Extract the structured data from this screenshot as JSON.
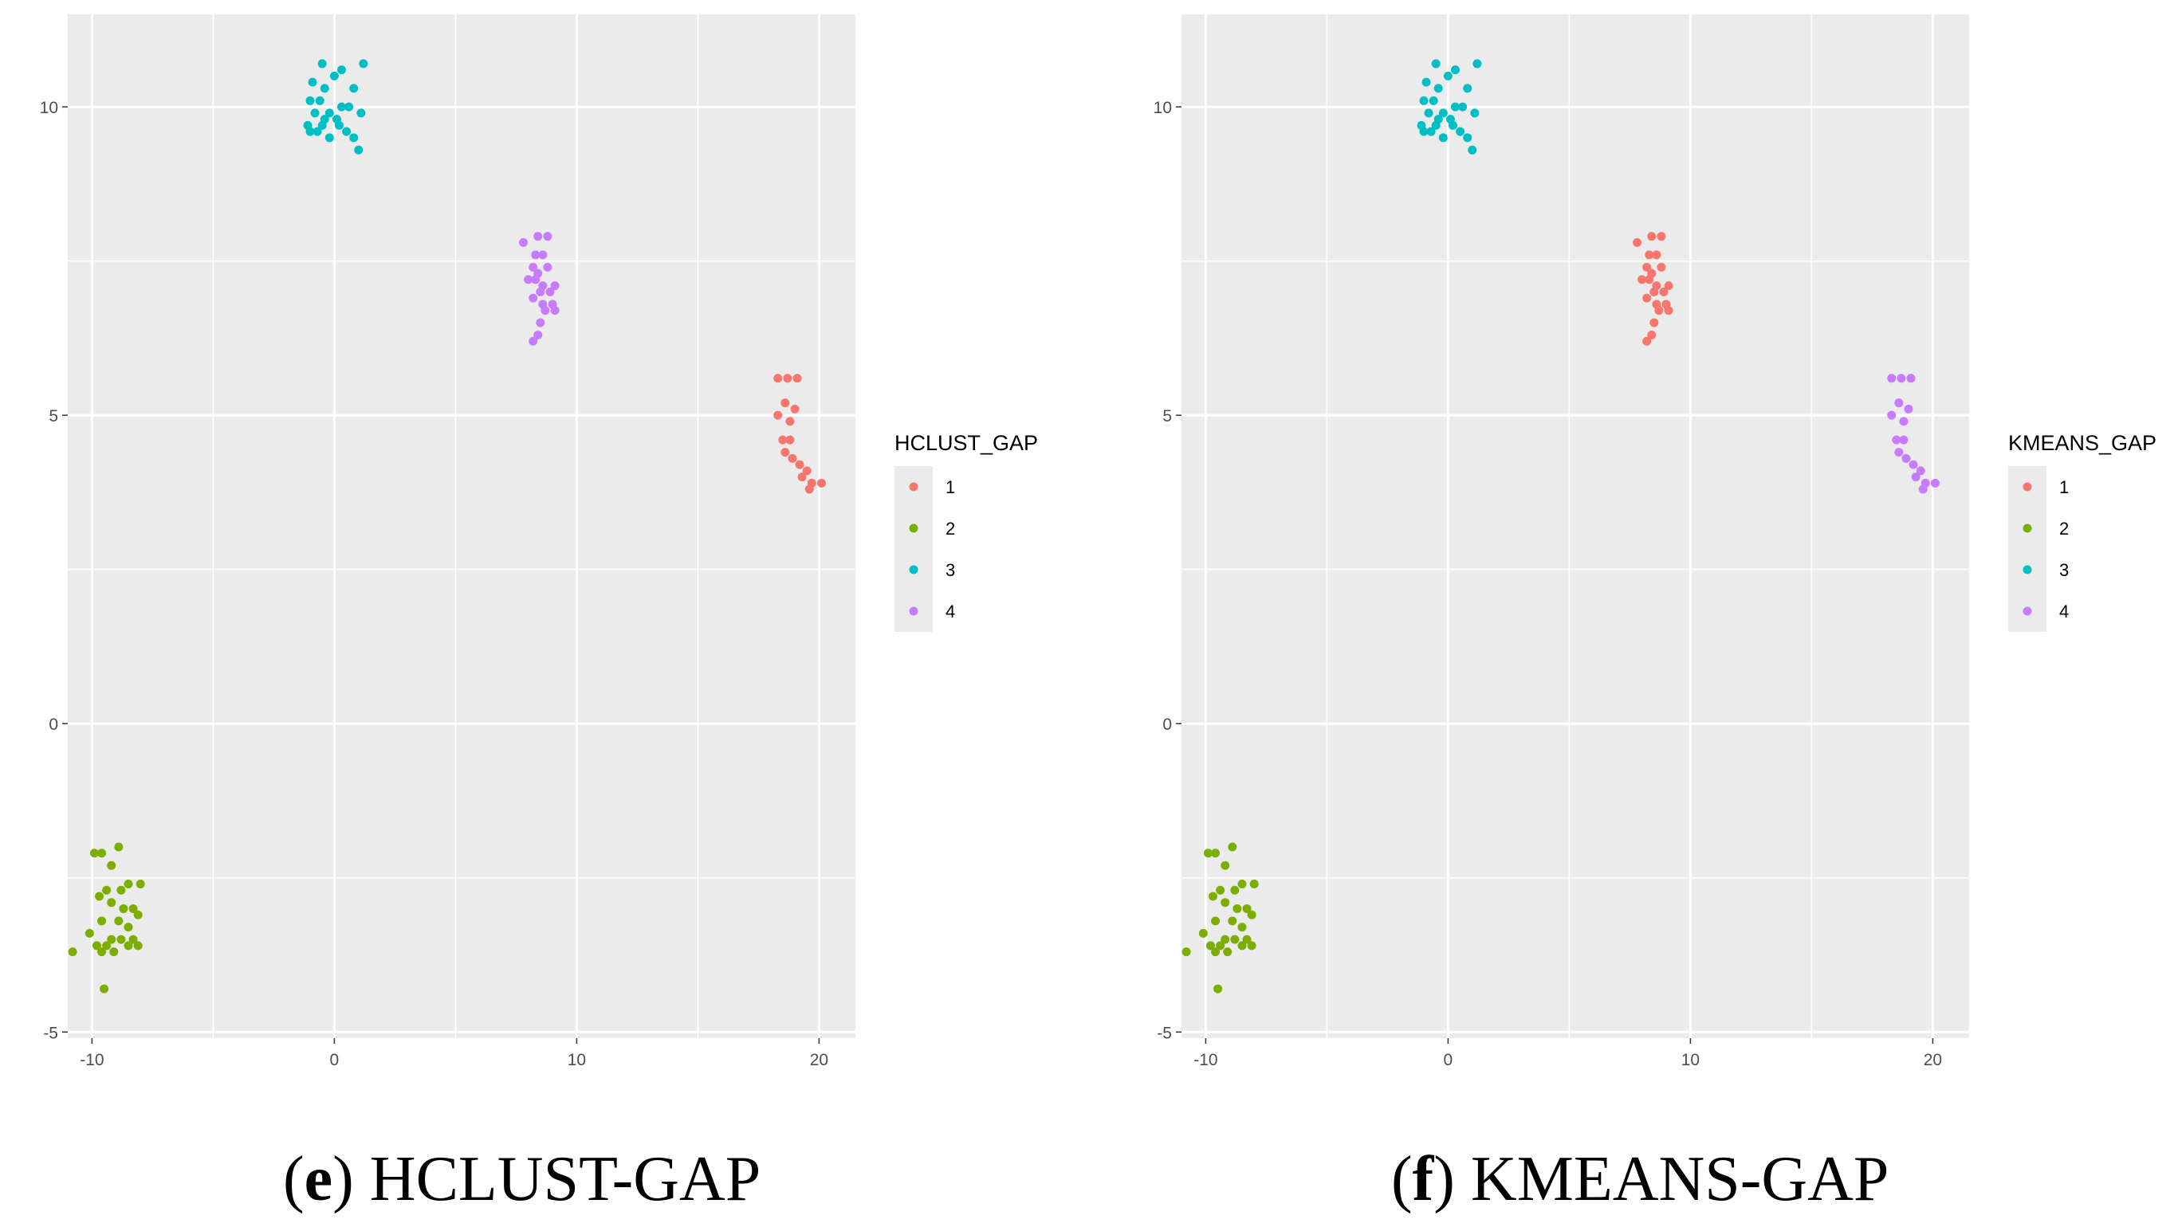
{
  "chart_data": [
    {
      "type": "scatter",
      "caption_letter": "e",
      "caption_text": "HCLUST-GAP",
      "legend_title": "HCLUST_GAP",
      "xlim": [
        -11,
        21.5
      ],
      "ylim": [
        -5.1,
        11.5
      ],
      "x_ticks": [
        -10,
        0,
        10,
        20
      ],
      "x_tick_labels": [
        "-10",
        "0",
        "10",
        "20"
      ],
      "y_ticks": [
        -5,
        0,
        5,
        10
      ],
      "y_tick_labels": [
        "-5",
        "0",
        "5",
        "10"
      ],
      "series": [
        {
          "name": "1",
          "points": [
            [
              18.3,
              5.6
            ],
            [
              18.7,
              5.6
            ],
            [
              19.1,
              5.6
            ],
            [
              18.6,
              5.2
            ],
            [
              18.3,
              5.0
            ],
            [
              19.0,
              5.1
            ],
            [
              18.8,
              4.9
            ],
            [
              18.5,
              4.6
            ],
            [
              18.8,
              4.6
            ],
            [
              18.6,
              4.4
            ],
            [
              18.9,
              4.3
            ],
            [
              19.2,
              4.2
            ],
            [
              19.5,
              4.1
            ],
            [
              19.3,
              4.0
            ],
            [
              19.7,
              3.9
            ],
            [
              20.1,
              3.9
            ],
            [
              19.6,
              3.8
            ]
          ]
        },
        {
          "name": "2",
          "points": [
            [
              -10.8,
              -3.7
            ],
            [
              -9.9,
              -2.1
            ],
            [
              -9.6,
              -2.1
            ],
            [
              -8.9,
              -2.0
            ],
            [
              -9.2,
              -2.3
            ],
            [
              -9.7,
              -2.8
            ],
            [
              -9.4,
              -2.7
            ],
            [
              -8.8,
              -2.7
            ],
            [
              -8.5,
              -2.6
            ],
            [
              -8.0,
              -2.6
            ],
            [
              -9.2,
              -2.9
            ],
            [
              -8.7,
              -3.0
            ],
            [
              -8.3,
              -3.0
            ],
            [
              -8.1,
              -3.1
            ],
            [
              -9.6,
              -3.2
            ],
            [
              -8.9,
              -3.2
            ],
            [
              -8.5,
              -3.3
            ],
            [
              -10.1,
              -3.4
            ],
            [
              -9.2,
              -3.5
            ],
            [
              -8.8,
              -3.5
            ],
            [
              -8.3,
              -3.5
            ],
            [
              -9.8,
              -3.6
            ],
            [
              -9.4,
              -3.6
            ],
            [
              -8.5,
              -3.6
            ],
            [
              -8.1,
              -3.6
            ],
            [
              -9.6,
              -3.7
            ],
            [
              -9.1,
              -3.7
            ],
            [
              -9.5,
              -4.3
            ]
          ]
        },
        {
          "name": "3",
          "points": [
            [
              -0.5,
              10.7
            ],
            [
              0.3,
              10.6
            ],
            [
              1.2,
              10.7
            ],
            [
              -0.9,
              10.4
            ],
            [
              0.0,
              10.5
            ],
            [
              -0.4,
              10.3
            ],
            [
              0.8,
              10.3
            ],
            [
              -1.0,
              10.1
            ],
            [
              -0.6,
              10.1
            ],
            [
              0.3,
              10.0
            ],
            [
              0.6,
              10.0
            ],
            [
              -0.2,
              9.9
            ],
            [
              -0.8,
              9.9
            ],
            [
              -0.4,
              9.8
            ],
            [
              0.1,
              9.8
            ],
            [
              1.1,
              9.9
            ],
            [
              -1.1,
              9.7
            ],
            [
              -0.5,
              9.7
            ],
            [
              0.2,
              9.7
            ],
            [
              -0.7,
              9.6
            ],
            [
              -1.0,
              9.6
            ],
            [
              0.5,
              9.6
            ],
            [
              -0.2,
              9.5
            ],
            [
              0.8,
              9.5
            ],
            [
              1.0,
              9.3
            ]
          ]
        },
        {
          "name": "4",
          "points": [
            [
              7.8,
              7.8
            ],
            [
              8.4,
              7.9
            ],
            [
              8.8,
              7.9
            ],
            [
              8.3,
              7.6
            ],
            [
              8.6,
              7.6
            ],
            [
              8.2,
              7.4
            ],
            [
              8.8,
              7.4
            ],
            [
              8.4,
              7.3
            ],
            [
              8.0,
              7.2
            ],
            [
              8.3,
              7.2
            ],
            [
              8.6,
              7.1
            ],
            [
              9.1,
              7.1
            ],
            [
              8.5,
              7.0
            ],
            [
              8.9,
              7.0
            ],
            [
              8.2,
              6.9
            ],
            [
              8.6,
              6.8
            ],
            [
              9.0,
              6.8
            ],
            [
              8.7,
              6.7
            ],
            [
              9.1,
              6.7
            ],
            [
              8.5,
              6.5
            ],
            [
              8.4,
              6.3
            ],
            [
              8.2,
              6.2
            ]
          ]
        }
      ]
    },
    {
      "type": "scatter",
      "caption_letter": "f",
      "caption_text": "KMEANS-GAP",
      "legend_title": "KMEANS_GAP",
      "xlim": [
        -11,
        21.5
      ],
      "ylim": [
        -5.1,
        11.5
      ],
      "x_ticks": [
        -10,
        0,
        10,
        20
      ],
      "x_tick_labels": [
        "-10",
        "0",
        "10",
        "20"
      ],
      "y_ticks": [
        -5,
        0,
        5,
        10
      ],
      "y_tick_labels": [
        "-5",
        "0",
        "5",
        "10"
      ],
      "series": [
        {
          "name": "1",
          "points": [
            [
              7.8,
              7.8
            ],
            [
              8.4,
              7.9
            ],
            [
              8.8,
              7.9
            ],
            [
              8.3,
              7.6
            ],
            [
              8.6,
              7.6
            ],
            [
              8.2,
              7.4
            ],
            [
              8.8,
              7.4
            ],
            [
              8.4,
              7.3
            ],
            [
              8.0,
              7.2
            ],
            [
              8.3,
              7.2
            ],
            [
              8.6,
              7.1
            ],
            [
              9.1,
              7.1
            ],
            [
              8.5,
              7.0
            ],
            [
              8.9,
              7.0
            ],
            [
              8.2,
              6.9
            ],
            [
              8.6,
              6.8
            ],
            [
              9.0,
              6.8
            ],
            [
              8.7,
              6.7
            ],
            [
              9.1,
              6.7
            ],
            [
              8.5,
              6.5
            ],
            [
              8.4,
              6.3
            ],
            [
              8.2,
              6.2
            ]
          ]
        },
        {
          "name": "2",
          "points": [
            [
              -10.8,
              -3.7
            ],
            [
              -9.9,
              -2.1
            ],
            [
              -9.6,
              -2.1
            ],
            [
              -8.9,
              -2.0
            ],
            [
              -9.2,
              -2.3
            ],
            [
              -9.7,
              -2.8
            ],
            [
              -9.4,
              -2.7
            ],
            [
              -8.8,
              -2.7
            ],
            [
              -8.5,
              -2.6
            ],
            [
              -8.0,
              -2.6
            ],
            [
              -9.2,
              -2.9
            ],
            [
              -8.7,
              -3.0
            ],
            [
              -8.3,
              -3.0
            ],
            [
              -8.1,
              -3.1
            ],
            [
              -9.6,
              -3.2
            ],
            [
              -8.9,
              -3.2
            ],
            [
              -8.5,
              -3.3
            ],
            [
              -10.1,
              -3.4
            ],
            [
              -9.2,
              -3.5
            ],
            [
              -8.8,
              -3.5
            ],
            [
              -8.3,
              -3.5
            ],
            [
              -9.8,
              -3.6
            ],
            [
              -9.4,
              -3.6
            ],
            [
              -8.5,
              -3.6
            ],
            [
              -8.1,
              -3.6
            ],
            [
              -9.6,
              -3.7
            ],
            [
              -9.1,
              -3.7
            ],
            [
              -9.5,
              -4.3
            ]
          ]
        },
        {
          "name": "3",
          "points": [
            [
              -0.5,
              10.7
            ],
            [
              0.3,
              10.6
            ],
            [
              1.2,
              10.7
            ],
            [
              -0.9,
              10.4
            ],
            [
              0.0,
              10.5
            ],
            [
              -0.4,
              10.3
            ],
            [
              0.8,
              10.3
            ],
            [
              -1.0,
              10.1
            ],
            [
              -0.6,
              10.1
            ],
            [
              0.3,
              10.0
            ],
            [
              0.6,
              10.0
            ],
            [
              -0.2,
              9.9
            ],
            [
              -0.8,
              9.9
            ],
            [
              -0.4,
              9.8
            ],
            [
              0.1,
              9.8
            ],
            [
              1.1,
              9.9
            ],
            [
              -1.1,
              9.7
            ],
            [
              -0.5,
              9.7
            ],
            [
              0.2,
              9.7
            ],
            [
              -0.7,
              9.6
            ],
            [
              -1.0,
              9.6
            ],
            [
              0.5,
              9.6
            ],
            [
              -0.2,
              9.5
            ],
            [
              0.8,
              9.5
            ],
            [
              1.0,
              9.3
            ]
          ]
        },
        {
          "name": "4",
          "points": [
            [
              18.3,
              5.6
            ],
            [
              18.7,
              5.6
            ],
            [
              19.1,
              5.6
            ],
            [
              18.6,
              5.2
            ],
            [
              18.3,
              5.0
            ],
            [
              19.0,
              5.1
            ],
            [
              18.8,
              4.9
            ],
            [
              18.5,
              4.6
            ],
            [
              18.8,
              4.6
            ],
            [
              18.6,
              4.4
            ],
            [
              18.9,
              4.3
            ],
            [
              19.2,
              4.2
            ],
            [
              19.5,
              4.1
            ],
            [
              19.3,
              4.0
            ],
            [
              19.7,
              3.9
            ],
            [
              20.1,
              3.9
            ],
            [
              19.6,
              3.8
            ]
          ]
        }
      ]
    }
  ],
  "colors": {
    "1": "#F8766D",
    "2": "#7CAE00",
    "3": "#00BFC4",
    "4": "#C77CFF",
    "panel_background": "#EBEBEB",
    "grid": "#FFFFFF",
    "tick_text": "#4D4D4D"
  }
}
